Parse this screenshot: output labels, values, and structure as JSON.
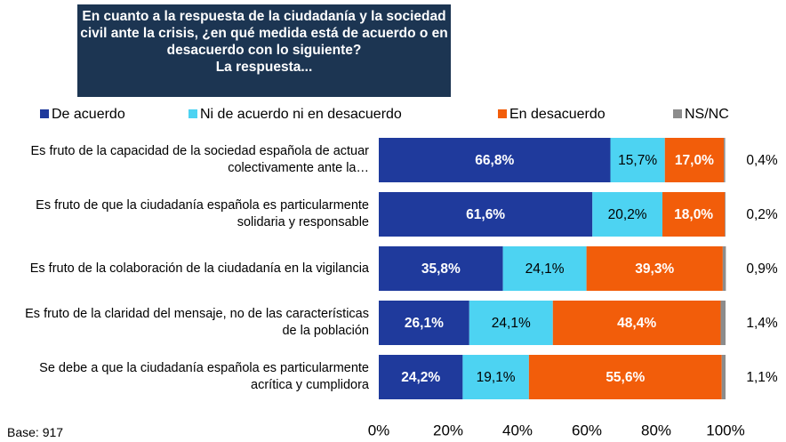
{
  "chart_data": {
    "type": "stacked-bar-horizontal",
    "title": "En cuanto a la respuesta de la ciudadanía y la sociedad civil ante la crisis, ¿en qué medida está de acuerdo o en desacuerdo con lo siguiente?",
    "subtitle": "La respuesta...",
    "categories": [
      "Es fruto de la capacidad de la sociedad española de actuar colectivamente ante la…",
      "Es fruto de que la ciudadanía española es particularmente solidaria y responsable",
      "Es fruto de la colaboración de la ciudadanía en la vigilancia",
      "Es fruto de la claridad del mensaje, no de las características de la población",
      "Se debe a que la ciudadanía española es particularmente acrítica y cumplidora"
    ],
    "series": [
      {
        "name": "De acuerdo",
        "color": "#1f3a9c",
        "values": [
          66.8,
          61.6,
          35.8,
          26.1,
          24.2
        ],
        "value_labels": [
          "66,8%",
          "61,6%",
          "35,8%",
          "26,1%",
          "24,2%"
        ]
      },
      {
        "name": "Ni de acuerdo ni en desacuerdo",
        "color": "#4dd3f2",
        "values": [
          15.7,
          20.2,
          24.1,
          24.1,
          19.1
        ],
        "value_labels": [
          "15,7%",
          "20,2%",
          "24,1%",
          "24,1%",
          "19,1%"
        ]
      },
      {
        "name": "En desacuerdo",
        "color": "#f25d0a",
        "values": [
          17.0,
          18.0,
          39.3,
          48.4,
          55.6
        ],
        "value_labels": [
          "17,0%",
          "18,0%",
          "39,3%",
          "48,4%",
          "55,6%"
        ]
      },
      {
        "name": "NS/NC",
        "color": "#8c8c8c",
        "values": [
          0.4,
          0.2,
          0.9,
          1.4,
          1.1
        ],
        "value_labels": [
          "0,4%",
          "0,2%",
          "0,9%",
          "1,4%",
          "1,1%"
        ]
      }
    ],
    "xlim": [
      0,
      100
    ],
    "xticks": [
      {
        "value": 0,
        "label": "0%"
      },
      {
        "value": 20,
        "label": "20%"
      },
      {
        "value": 40,
        "label": "40%"
      },
      {
        "value": 60,
        "label": "60%"
      },
      {
        "value": 80,
        "label": "80%"
      },
      {
        "value": 100,
        "label": "100%"
      }
    ],
    "note": "Base: 917"
  }
}
